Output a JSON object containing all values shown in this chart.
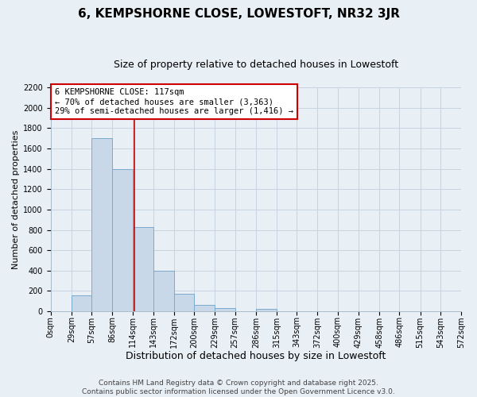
{
  "title": "6, KEMPSHORNE CLOSE, LOWESTOFT, NR32 3JR",
  "subtitle": "Size of property relative to detached houses in Lowestoft",
  "xlabel": "Distribution of detached houses by size in Lowestoft",
  "ylabel": "Number of detached properties",
  "bar_edges": [
    0,
    29,
    57,
    86,
    114,
    143,
    172,
    200,
    229,
    257,
    286,
    315,
    343,
    372,
    400,
    429,
    458,
    486,
    515,
    543,
    572
  ],
  "bar_heights": [
    0,
    155,
    1700,
    1400,
    830,
    400,
    170,
    65,
    30,
    0,
    25,
    0,
    0,
    0,
    0,
    0,
    0,
    0,
    0,
    0
  ],
  "bar_color": "#c8d8e8",
  "bar_edge_color": "#7aaace",
  "vline_x": 117,
  "vline_color": "#cc0000",
  "annotation_line1": "6 KEMPSHORNE CLOSE: 117sqm",
  "annotation_line2": "← 70% of detached houses are smaller (3,363)",
  "annotation_line3": "29% of semi-detached houses are larger (1,416) →",
  "annotation_box_fc": "white",
  "annotation_box_ec": "#cc0000",
  "xlim": [
    0,
    572
  ],
  "ylim": [
    0,
    2200
  ],
  "yticks": [
    0,
    200,
    400,
    600,
    800,
    1000,
    1200,
    1400,
    1600,
    1800,
    2000,
    2200
  ],
  "xtick_labels": [
    "0sqm",
    "29sqm",
    "57sqm",
    "86sqm",
    "114sqm",
    "143sqm",
    "172sqm",
    "200sqm",
    "229sqm",
    "257sqm",
    "286sqm",
    "315sqm",
    "343sqm",
    "372sqm",
    "400sqm",
    "429sqm",
    "458sqm",
    "486sqm",
    "515sqm",
    "543sqm",
    "572sqm"
  ],
  "footer_line1": "Contains HM Land Registry data © Crown copyright and database right 2025.",
  "footer_line2": "Contains public sector information licensed under the Open Government Licence v3.0.",
  "grid_color": "#c8d4e0",
  "background_color": "#e8eff5",
  "title_fontsize": 11,
  "subtitle_fontsize": 9,
  "xlabel_fontsize": 9,
  "ylabel_fontsize": 8,
  "annotation_fontsize": 7.5,
  "tick_fontsize": 7,
  "footer_fontsize": 6.5
}
